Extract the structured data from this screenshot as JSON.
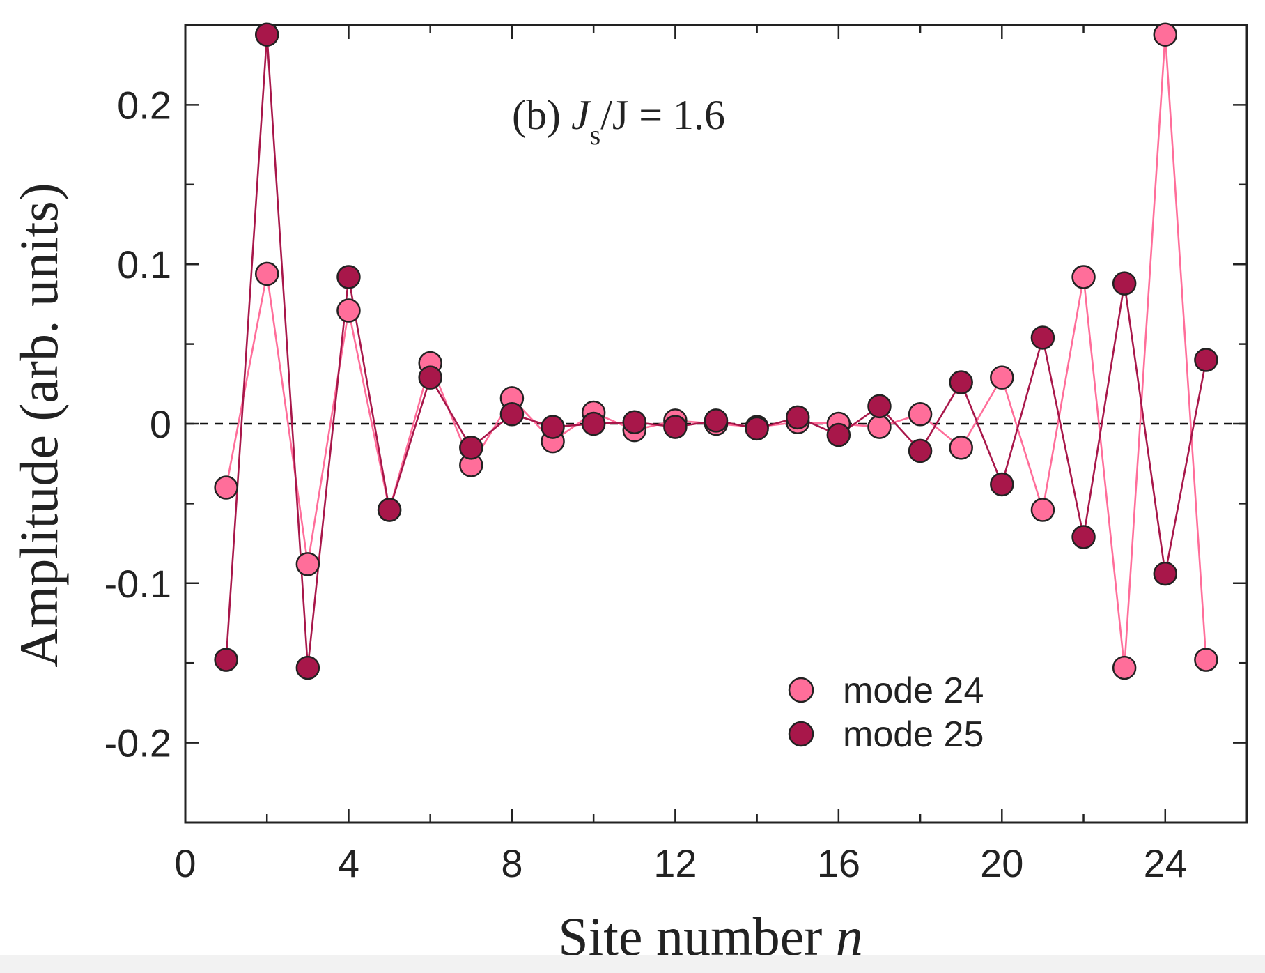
{
  "chart_data": {
    "type": "line",
    "xlabel": "Site number",
    "xlabel_var": "n",
    "ylabel": "Amplitude (arb. units)",
    "xlim": [
      0,
      26
    ],
    "ylim": [
      -0.25,
      0.25
    ],
    "xticks": [
      0,
      4,
      8,
      12,
      16,
      20,
      24
    ],
    "yticks": [
      -0.2,
      -0.1,
      0,
      0.1,
      0.2
    ],
    "ytick_labels": [
      "-0.2",
      "-0.1",
      "0",
      "0.1",
      "0.2"
    ],
    "annotation": {
      "prefix": "(b) ",
      "symbol": "J",
      "subscript": "s",
      "suffix": "/J = 1.6"
    },
    "legend_position": "bottom-right",
    "zero_line": true,
    "x": [
      1,
      2,
      3,
      4,
      5,
      6,
      7,
      8,
      9,
      10,
      11,
      12,
      13,
      14,
      15,
      16,
      17,
      18,
      19,
      20,
      21,
      22,
      23,
      24,
      25
    ],
    "series": [
      {
        "name": "mode 24",
        "color": "#ff6e9a",
        "values": [
          -0.04,
          0.094,
          -0.088,
          0.071,
          -0.054,
          0.038,
          -0.026,
          0.016,
          -0.011,
          0.007,
          -0.004,
          0.002,
          0.0,
          -0.002,
          0.001,
          0.0,
          -0.002,
          0.006,
          -0.015,
          0.029,
          -0.054,
          0.092,
          -0.153,
          0.244,
          -0.148
        ]
      },
      {
        "name": "mode 25",
        "color": "#a8174a",
        "values": [
          -0.148,
          0.244,
          -0.153,
          0.092,
          -0.054,
          0.029,
          -0.015,
          0.006,
          -0.002,
          0.0,
          0.001,
          -0.002,
          0.002,
          -0.003,
          0.004,
          -0.007,
          0.011,
          -0.017,
          0.026,
          -0.038,
          0.054,
          -0.071,
          0.088,
          -0.094,
          0.04
        ]
      }
    ]
  }
}
